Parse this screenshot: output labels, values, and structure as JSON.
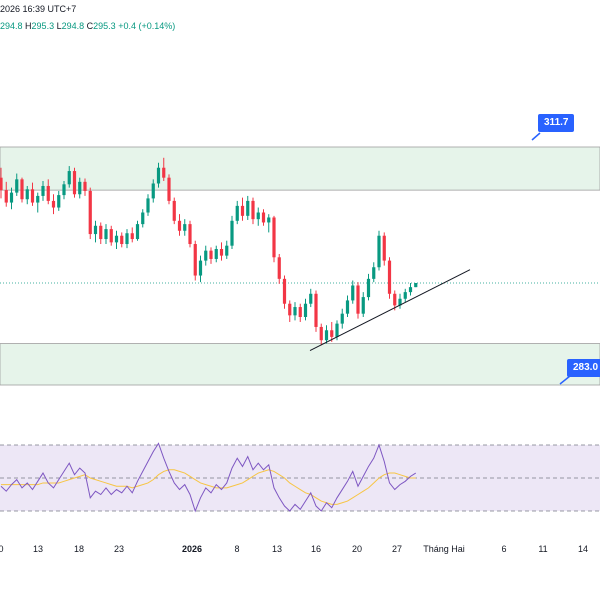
{
  "header": {
    "title": "2026 16:39 UTC+7",
    "ohlc": [
      {
        "label": "",
        "value": "294.8"
      },
      {
        "label": "H",
        "value": "295.3"
      },
      {
        "label": "L",
        "value": "294.8"
      },
      {
        "label": "C",
        "value": "295.3"
      }
    ],
    "change": "+0.4 (+0.14%)"
  },
  "zones": {
    "resistance_label": "311.7",
    "support_label": "283.0"
  },
  "colors": {
    "up": "#089981",
    "down": "#f23645",
    "zone_fill": "#e6f4ea",
    "rsi_band": "#ede7f6",
    "rsi_line": "#7e57c2",
    "rsi_ma": "#f7c544",
    "tag_bg": "#2962ff"
  },
  "x_axis": {
    "labels": [
      "0",
      "13",
      "18",
      "23",
      "2026",
      "8",
      "13",
      "16",
      "20",
      "27",
      "Tháng Hai",
      "6",
      "11",
      "14"
    ],
    "bold": [
      "2026"
    ]
  },
  "chart_data": {
    "type": "candlestick",
    "price_levels": {
      "resistance_zone": [
        306.5,
        311.7
      ],
      "support_zone": [
        283.0,
        288.0
      ],
      "last_price": 295.3
    },
    "candles": [
      {
        "o": 308.0,
        "h": 309.2,
        "l": 305.5,
        "c": 306.5
      },
      {
        "o": 306.5,
        "h": 307.5,
        "l": 304.5,
        "c": 305.0
      },
      {
        "o": 305.0,
        "h": 306.8,
        "l": 304.2,
        "c": 306.2
      },
      {
        "o": 306.2,
        "h": 308.5,
        "l": 305.8,
        "c": 307.8
      },
      {
        "o": 307.8,
        "h": 308.0,
        "l": 305.0,
        "c": 305.4
      },
      {
        "o": 305.4,
        "h": 307.0,
        "l": 304.8,
        "c": 306.6
      },
      {
        "o": 306.6,
        "h": 307.4,
        "l": 304.6,
        "c": 305.0
      },
      {
        "o": 305.0,
        "h": 306.2,
        "l": 303.8,
        "c": 305.8
      },
      {
        "o": 305.8,
        "h": 307.6,
        "l": 305.2,
        "c": 307.0
      },
      {
        "o": 307.0,
        "h": 307.8,
        "l": 304.8,
        "c": 305.2
      },
      {
        "o": 305.2,
        "h": 306.0,
        "l": 303.6,
        "c": 304.4
      },
      {
        "o": 304.4,
        "h": 306.4,
        "l": 304.0,
        "c": 305.9
      },
      {
        "o": 305.9,
        "h": 307.6,
        "l": 305.4,
        "c": 307.2
      },
      {
        "o": 307.2,
        "h": 309.4,
        "l": 306.8,
        "c": 308.8
      },
      {
        "o": 308.8,
        "h": 309.2,
        "l": 305.6,
        "c": 306.0
      },
      {
        "o": 306.0,
        "h": 308.0,
        "l": 305.5,
        "c": 307.5
      },
      {
        "o": 307.5,
        "h": 307.9,
        "l": 305.8,
        "c": 306.4
      },
      {
        "o": 306.4,
        "h": 306.8,
        "l": 300.6,
        "c": 301.2
      },
      {
        "o": 301.2,
        "h": 302.8,
        "l": 300.2,
        "c": 302.2
      },
      {
        "o": 302.2,
        "h": 302.6,
        "l": 300.0,
        "c": 300.6
      },
      {
        "o": 300.6,
        "h": 302.4,
        "l": 300.0,
        "c": 301.8
      },
      {
        "o": 301.8,
        "h": 302.2,
        "l": 299.8,
        "c": 300.2
      },
      {
        "o": 300.2,
        "h": 301.6,
        "l": 299.4,
        "c": 301.0
      },
      {
        "o": 301.0,
        "h": 301.4,
        "l": 299.6,
        "c": 300.0
      },
      {
        "o": 300.0,
        "h": 301.8,
        "l": 299.5,
        "c": 301.3
      },
      {
        "o": 301.3,
        "h": 302.0,
        "l": 300.2,
        "c": 300.6
      },
      {
        "o": 300.6,
        "h": 302.8,
        "l": 300.4,
        "c": 302.4
      },
      {
        "o": 302.4,
        "h": 304.2,
        "l": 302.0,
        "c": 303.8
      },
      {
        "o": 303.8,
        "h": 306.0,
        "l": 303.4,
        "c": 305.5
      },
      {
        "o": 305.5,
        "h": 307.8,
        "l": 305.0,
        "c": 307.3
      },
      {
        "o": 307.3,
        "h": 309.8,
        "l": 306.8,
        "c": 309.2
      },
      {
        "o": 309.2,
        "h": 310.4,
        "l": 307.6,
        "c": 308.0
      },
      {
        "o": 308.0,
        "h": 308.4,
        "l": 304.8,
        "c": 305.2
      },
      {
        "o": 305.2,
        "h": 305.6,
        "l": 302.4,
        "c": 302.8
      },
      {
        "o": 302.8,
        "h": 303.6,
        "l": 301.0,
        "c": 301.6
      },
      {
        "o": 301.6,
        "h": 303.0,
        "l": 301.0,
        "c": 302.4
      },
      {
        "o": 302.4,
        "h": 302.8,
        "l": 299.6,
        "c": 300.0
      },
      {
        "o": 300.0,
        "h": 300.4,
        "l": 295.6,
        "c": 296.2
      },
      {
        "o": 296.2,
        "h": 298.6,
        "l": 295.4,
        "c": 298.0
      },
      {
        "o": 298.0,
        "h": 299.8,
        "l": 297.4,
        "c": 299.2
      },
      {
        "o": 299.2,
        "h": 299.6,
        "l": 297.6,
        "c": 298.2
      },
      {
        "o": 298.2,
        "h": 299.8,
        "l": 297.8,
        "c": 299.4
      },
      {
        "o": 299.4,
        "h": 300.2,
        "l": 298.0,
        "c": 298.6
      },
      {
        "o": 298.6,
        "h": 300.4,
        "l": 298.2,
        "c": 299.8
      },
      {
        "o": 299.8,
        "h": 303.4,
        "l": 299.4,
        "c": 302.8
      },
      {
        "o": 302.8,
        "h": 305.2,
        "l": 302.4,
        "c": 304.6
      },
      {
        "o": 304.6,
        "h": 305.6,
        "l": 302.8,
        "c": 303.4
      },
      {
        "o": 303.4,
        "h": 305.8,
        "l": 302.9,
        "c": 305.2
      },
      {
        "o": 305.2,
        "h": 305.6,
        "l": 302.4,
        "c": 303.0
      },
      {
        "o": 303.0,
        "h": 304.4,
        "l": 302.2,
        "c": 303.8
      },
      {
        "o": 303.8,
        "h": 304.2,
        "l": 302.2,
        "c": 302.6
      },
      {
        "o": 302.6,
        "h": 303.6,
        "l": 301.4,
        "c": 303.2
      },
      {
        "o": 303.2,
        "h": 303.4,
        "l": 297.8,
        "c": 298.4
      },
      {
        "o": 298.4,
        "h": 298.8,
        "l": 295.2,
        "c": 295.8
      },
      {
        "o": 295.8,
        "h": 296.2,
        "l": 292.2,
        "c": 292.8
      },
      {
        "o": 292.8,
        "h": 293.2,
        "l": 290.6,
        "c": 291.4
      },
      {
        "o": 291.4,
        "h": 293.0,
        "l": 290.8,
        "c": 292.4
      },
      {
        "o": 292.4,
        "h": 292.8,
        "l": 290.6,
        "c": 291.2
      },
      {
        "o": 291.2,
        "h": 293.4,
        "l": 290.8,
        "c": 292.8
      },
      {
        "o": 292.8,
        "h": 294.6,
        "l": 292.4,
        "c": 294.0
      },
      {
        "o": 294.0,
        "h": 294.4,
        "l": 289.4,
        "c": 290.0
      },
      {
        "o": 290.0,
        "h": 290.4,
        "l": 287.8,
        "c": 288.4
      },
      {
        "o": 288.4,
        "h": 290.2,
        "l": 288.0,
        "c": 289.6
      },
      {
        "o": 289.6,
        "h": 290.6,
        "l": 288.2,
        "c": 288.8
      },
      {
        "o": 288.8,
        "h": 290.8,
        "l": 288.4,
        "c": 290.4
      },
      {
        "o": 290.4,
        "h": 292.2,
        "l": 289.8,
        "c": 291.6
      },
      {
        "o": 291.6,
        "h": 293.8,
        "l": 291.2,
        "c": 293.2
      },
      {
        "o": 293.2,
        "h": 295.6,
        "l": 292.8,
        "c": 295.0
      },
      {
        "o": 295.0,
        "h": 295.4,
        "l": 291.0,
        "c": 291.6
      },
      {
        "o": 291.6,
        "h": 294.2,
        "l": 291.2,
        "c": 293.6
      },
      {
        "o": 293.6,
        "h": 296.4,
        "l": 293.2,
        "c": 295.8
      },
      {
        "o": 295.8,
        "h": 297.8,
        "l": 295.4,
        "c": 297.2
      },
      {
        "o": 297.2,
        "h": 301.6,
        "l": 296.8,
        "c": 301.0
      },
      {
        "o": 301.0,
        "h": 301.4,
        "l": 297.4,
        "c": 298.0
      },
      {
        "o": 298.0,
        "h": 298.4,
        "l": 293.4,
        "c": 294.0
      },
      {
        "o": 294.0,
        "h": 294.4,
        "l": 292.0,
        "c": 292.6
      },
      {
        "o": 292.6,
        "h": 294.0,
        "l": 292.2,
        "c": 293.4
      },
      {
        "o": 293.4,
        "h": 294.6,
        "l": 293.0,
        "c": 294.2
      },
      {
        "o": 294.2,
        "h": 295.3,
        "l": 293.8,
        "c": 294.8
      },
      {
        "o": 294.8,
        "h": 295.3,
        "l": 294.8,
        "c": 295.3
      }
    ],
    "rsi": [
      45,
      42,
      46,
      49,
      44,
      47,
      43,
      48,
      53,
      47,
      44,
      49,
      54,
      59,
      52,
      56,
      53,
      38,
      42,
      40,
      44,
      40,
      43,
      41,
      45,
      41,
      48,
      54,
      60,
      66,
      71,
      62,
      54,
      47,
      43,
      46,
      40,
      30,
      38,
      44,
      41,
      46,
      43,
      47,
      56,
      62,
      57,
      63,
      55,
      59,
      55,
      58,
      44,
      38,
      33,
      30,
      34,
      31,
      36,
      41,
      33,
      30,
      35,
      32,
      38,
      43,
      48,
      54,
      45,
      51,
      57,
      62,
      70,
      60,
      47,
      43,
      46,
      48,
      51,
      53
    ],
    "rsi_ma": [
      46,
      46,
      46,
      46,
      46,
      46,
      46,
      46,
      47,
      47,
      47,
      47,
      48,
      49,
      50,
      51,
      52,
      50,
      49,
      48,
      47,
      46,
      45,
      45,
      45,
      44,
      45,
      46,
      47,
      49,
      52,
      54,
      55,
      55,
      54,
      53,
      51,
      49,
      47,
      46,
      45,
      44,
      44,
      44,
      45,
      46,
      47,
      49,
      51,
      53,
      54,
      55,
      54,
      52,
      50,
      47,
      45,
      43,
      41,
      40,
      38,
      36,
      35,
      34,
      34,
      35,
      36,
      38,
      40,
      42,
      44,
      47,
      50,
      52,
      53,
      53,
      52,
      51,
      50,
      50
    ]
  }
}
